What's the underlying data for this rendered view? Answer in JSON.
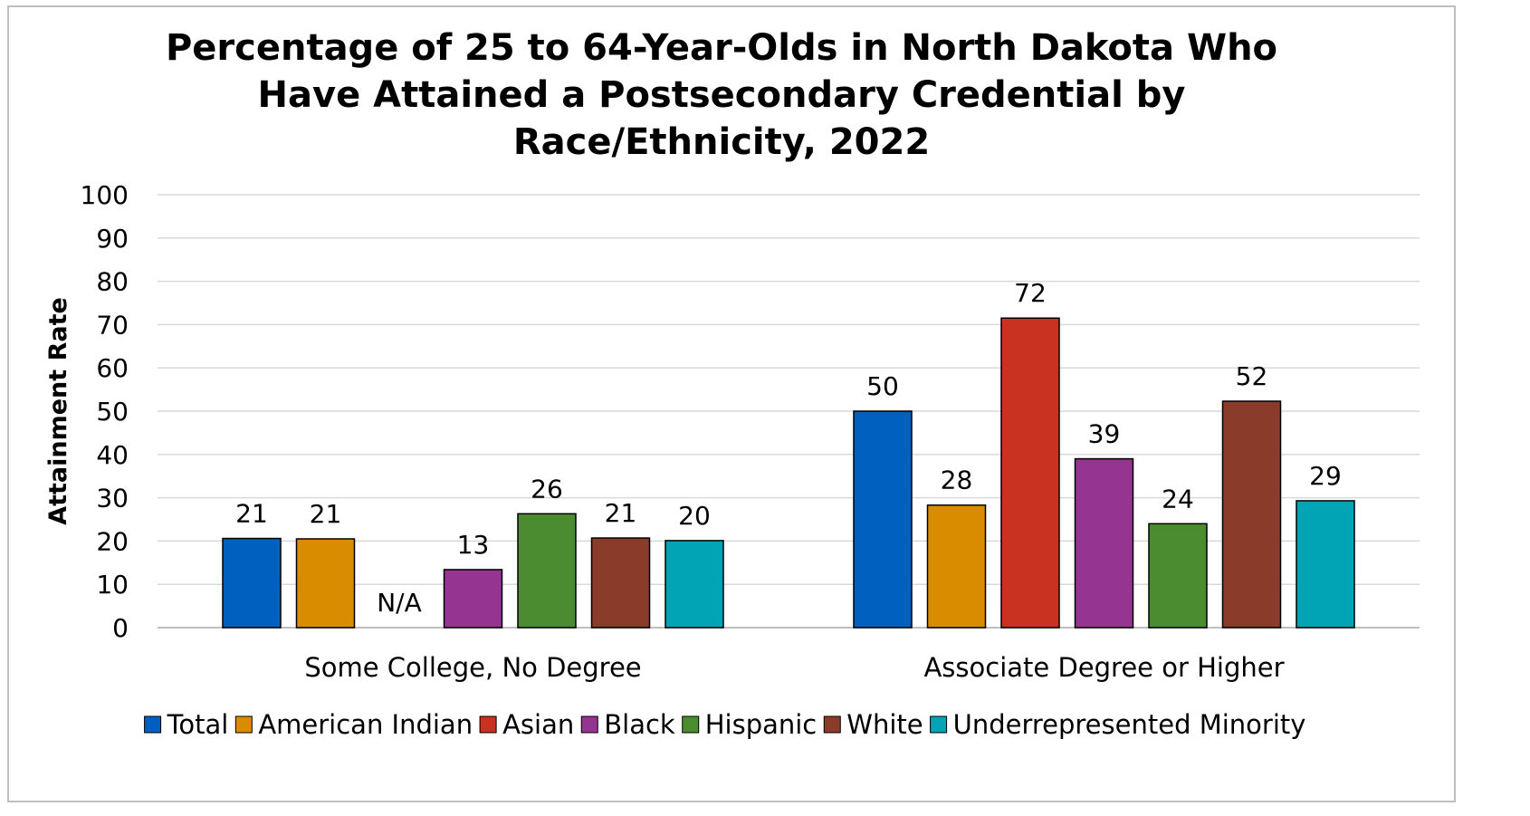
{
  "chart_data": {
    "type": "bar",
    "title_lines": [
      "Percentage of 25 to 64-Year-Olds in North Dakota Who",
      "Have Attained a Postsecondary Credential by",
      "Race/Ethnicity, 2022"
    ],
    "ylabel": "Attainment Rate",
    "xlabel": "",
    "ylim": [
      0,
      100
    ],
    "yticks": [
      "0",
      "10",
      "20",
      "30",
      "40",
      "50",
      "60",
      "70",
      "80",
      "90",
      "100"
    ],
    "grid": true,
    "legend_position": "bottom",
    "categories": [
      "Some College, No Degree",
      "Associate Degree or Higher"
    ],
    "series": [
      {
        "name": "Total",
        "color": "#0060c0",
        "values": [
          20.6,
          50.0
        ],
        "labels": [
          "21",
          "50"
        ]
      },
      {
        "name": "American Indian",
        "color": "#d98c00",
        "values": [
          20.5,
          28.3
        ],
        "labels": [
          "21",
          "28"
        ]
      },
      {
        "name": "Asian",
        "color": "#c83220",
        "values": [
          null,
          71.5
        ],
        "labels": [
          "N/A",
          "72"
        ]
      },
      {
        "name": "Black",
        "color": "#963591",
        "values": [
          13.4,
          39.0
        ],
        "labels": [
          "13",
          "39"
        ]
      },
      {
        "name": "Hispanic",
        "color": "#4b8c30",
        "values": [
          26.3,
          24.0
        ],
        "labels": [
          "26",
          "24"
        ]
      },
      {
        "name": "White",
        "color": "#8b3b2a",
        "values": [
          20.7,
          52.3
        ],
        "labels": [
          "21",
          "52"
        ]
      },
      {
        "name": "Underrepresented Minority",
        "color": "#00a4b4",
        "values": [
          20.1,
          29.3
        ],
        "labels": [
          "20",
          "29"
        ]
      }
    ]
  }
}
